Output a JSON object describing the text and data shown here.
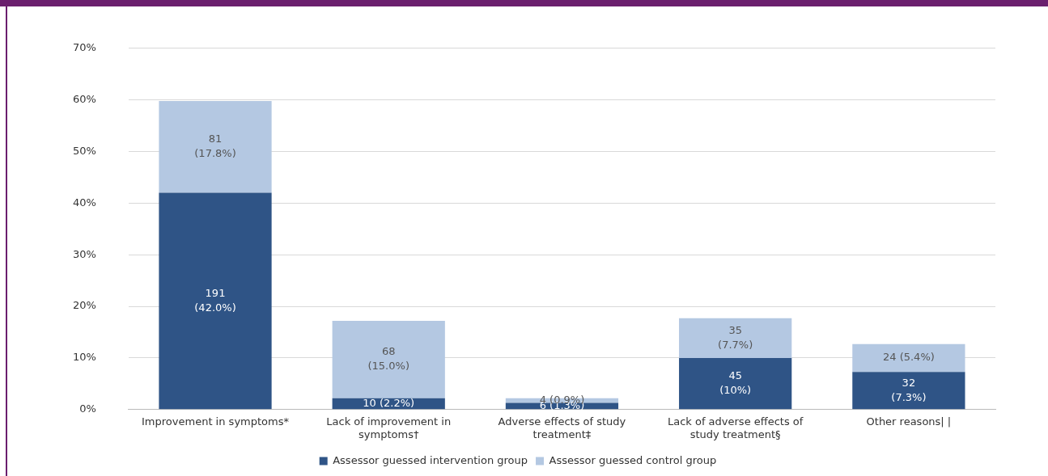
{
  "chart_data": {
    "type": "bar",
    "stacked": true,
    "categories": [
      "Improvement in symptoms*",
      "Lack of improvement in symptoms†",
      "Adverse effects of study treatment‡",
      "Lack of adverse effects of study treatment§",
      "Other reasons| |"
    ],
    "series": [
      {
        "name": "Assessor guessed intervention group",
        "color": "#2f5486",
        "values": [
          42.0,
          2.2,
          1.3,
          10,
          7.3
        ],
        "value_labels": [
          "191 (42.0%)",
          "10 (2.2%)",
          "6 (1.3%)",
          "45 (10%)",
          "32 (7.3%)"
        ]
      },
      {
        "name": "Assessor guessed control group",
        "color": "#b4c8e2",
        "values": [
          17.8,
          15.0,
          0.9,
          7.7,
          5.4
        ],
        "value_labels": [
          "81 (17.8%)",
          "68 (15.0%)",
          "4 (0.9%)",
          "35 (7.7%)",
          "24 (5.4%)"
        ]
      }
    ],
    "ylim": [
      0,
      70
    ],
    "yticks": [
      {
        "value": 0,
        "label": "0%"
      },
      {
        "value": 10,
        "label": "10%"
      },
      {
        "value": 20,
        "label": "20%"
      },
      {
        "value": 30,
        "label": "30%"
      },
      {
        "value": 40,
        "label": "40%"
      },
      {
        "value": 50,
        "label": "50%"
      },
      {
        "value": 60,
        "label": "60%"
      },
      {
        "value": 70,
        "label": "70%"
      }
    ],
    "grid": "y",
    "legend": "bottom"
  }
}
